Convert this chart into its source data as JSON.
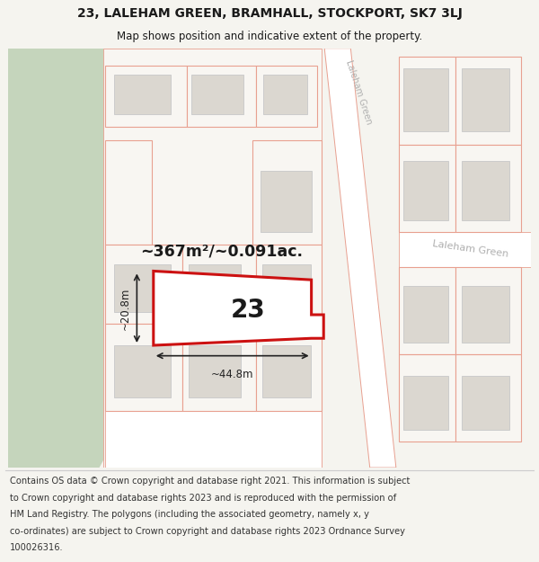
{
  "title_line1": "23, LALEHAM GREEN, BRAMHALL, STOCKPORT, SK7 3LJ",
  "title_line2": "Map shows position and indicative extent of the property.",
  "area_label": "~367m²/~0.091ac.",
  "number_label": "23",
  "width_label": "~44.8m",
  "height_label": "~20.8m",
  "footer_lines": [
    "Contains OS data © Crown copyright and database right 2021. This information is subject",
    "to Crown copyright and database rights 2023 and is reproduced with the permission of",
    "HM Land Registry. The polygons (including the associated geometry, namely x, y",
    "co-ordinates) are subject to Crown copyright and database rights 2023 Ordnance Survey",
    "100026316."
  ],
  "bg_color": "#f5f4ef",
  "map_bg": "#f0ede8",
  "green_color": "#c5d5bc",
  "plot_fill": "#e8e4de",
  "plot_stroke": "#e8a090",
  "building_fill": "#dbd7d0",
  "building_stroke": "#cccccc",
  "highlight_fill": "#ffffff",
  "highlight_stroke": "#cc1111",
  "road_fill": "#ffffff",
  "road_stroke": "#e8a090",
  "text_color": "#1a1a1a",
  "dim_color": "#222222",
  "road_text_color": "#aaaaaa",
  "footer_bg": "#ffffff"
}
